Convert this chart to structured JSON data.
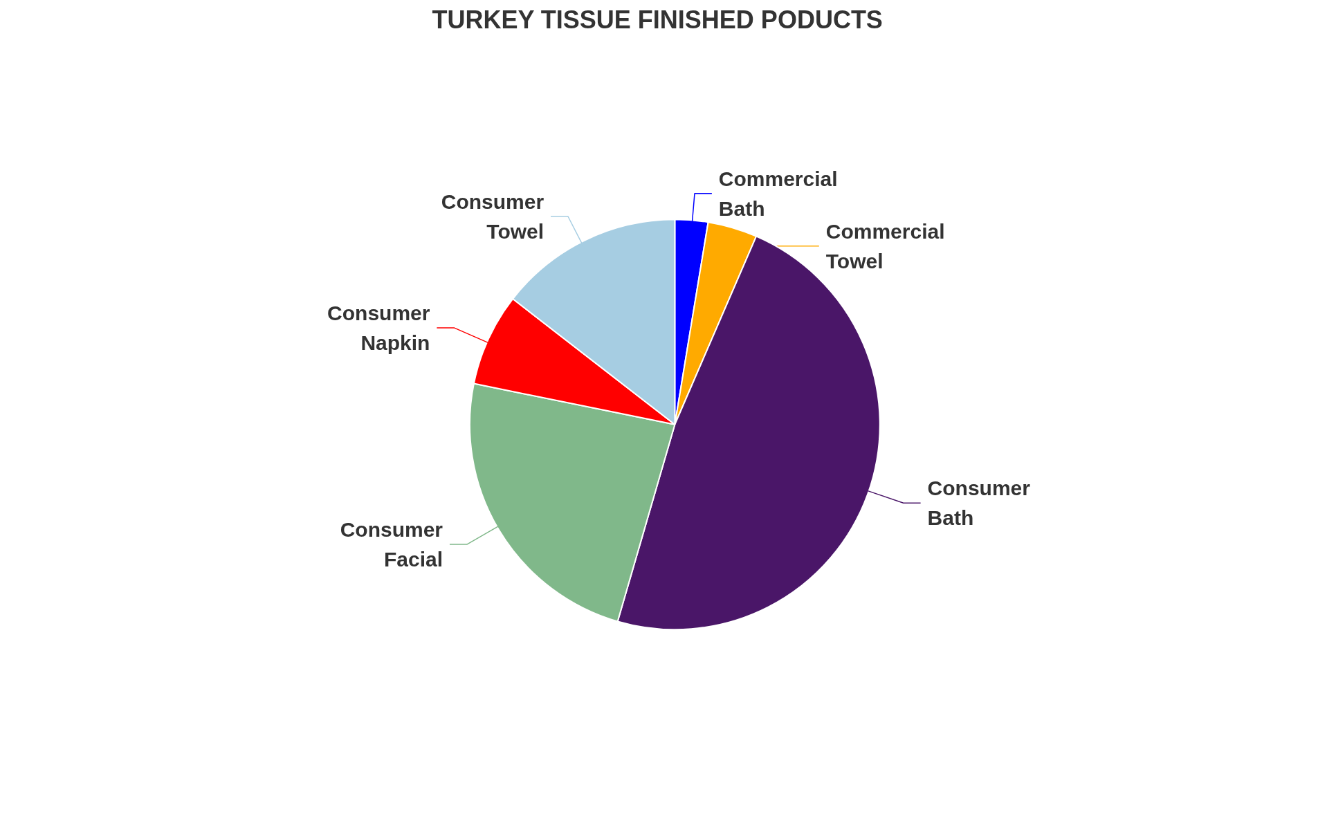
{
  "chart_data": {
    "type": "pie",
    "title": "TURKEY TISSUE FINISHED PODUCTS",
    "categories": [
      "Commercial Bath",
      "Commercial Towel",
      "Consumer Bath",
      "Consumer Facial",
      "Consumer Napkin",
      "Consumer Towel"
    ],
    "values": [
      2.6,
      3.9,
      48.0,
      23.7,
      7.3,
      14.5
    ],
    "colors": [
      "#0000ff",
      "#ffaa00",
      "#4a1668",
      "#80b88a",
      "#ff0000",
      "#a6cde2"
    ]
  }
}
